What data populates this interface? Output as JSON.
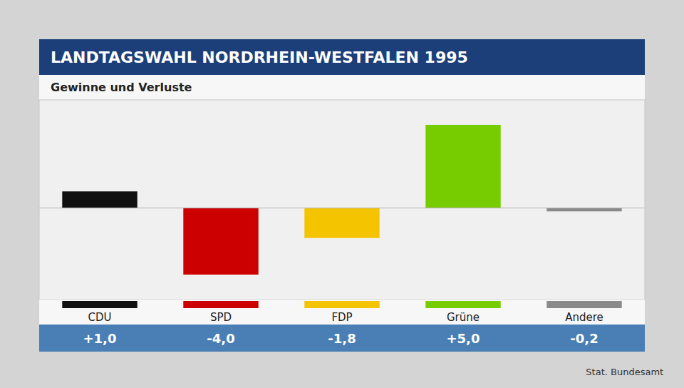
{
  "chart_data": {
    "type": "bar",
    "title": "LANDTAGSWAHL NORDRHEIN-WESTFALEN 1995",
    "subtitle": "Gewinne und Verluste",
    "categories": [
      "CDU",
      "SPD",
      "FDP",
      "Grüne",
      "Andere"
    ],
    "values": [
      1.0,
      -4.0,
      -1.8,
      5.0,
      -0.2
    ],
    "value_labels": [
      "+1,0",
      "-4,0",
      "-1,8",
      "+5,0",
      "-0,2"
    ],
    "colors": [
      "#111111",
      "#cc0000",
      "#f5c400",
      "#77cc00",
      "#8a8a8a"
    ],
    "source": "Stat. Bundesamt",
    "ylim": [
      -5.5,
      6.5
    ],
    "yticks": [
      0
    ],
    "tick_labels": false,
    "grid": false
  }
}
